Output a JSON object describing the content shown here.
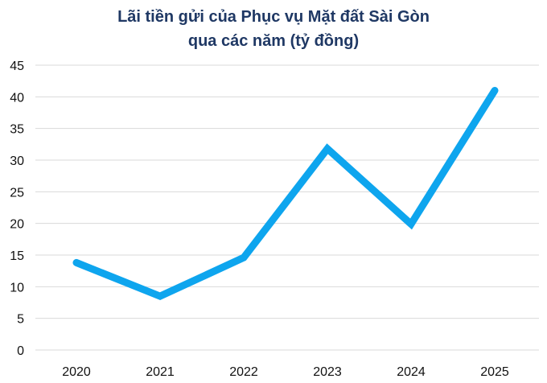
{
  "chart_data": {
    "type": "line",
    "title_lines": [
      "Lãi tiền gửi của Phục vụ Mặt đất Sài Gòn",
      "qua các năm (tỷ đồng)"
    ],
    "categories": [
      "2020",
      "2021",
      "2022",
      "2023",
      "2024",
      "2025"
    ],
    "series": [
      {
        "values": [
          13.8,
          8.5,
          14.6,
          31.8,
          19.9,
          41.0
        ],
        "color": "#0ea5ee"
      }
    ],
    "ylim": [
      0,
      45
    ],
    "yticks": [
      0,
      5,
      10,
      15,
      20,
      25,
      30,
      35,
      40,
      45
    ],
    "xlabel": "",
    "ylabel": "",
    "grid": true,
    "legend": "none",
    "colors": {
      "title": "#1f3864",
      "grid": "#d9d9d9",
      "text": "#111111"
    }
  }
}
